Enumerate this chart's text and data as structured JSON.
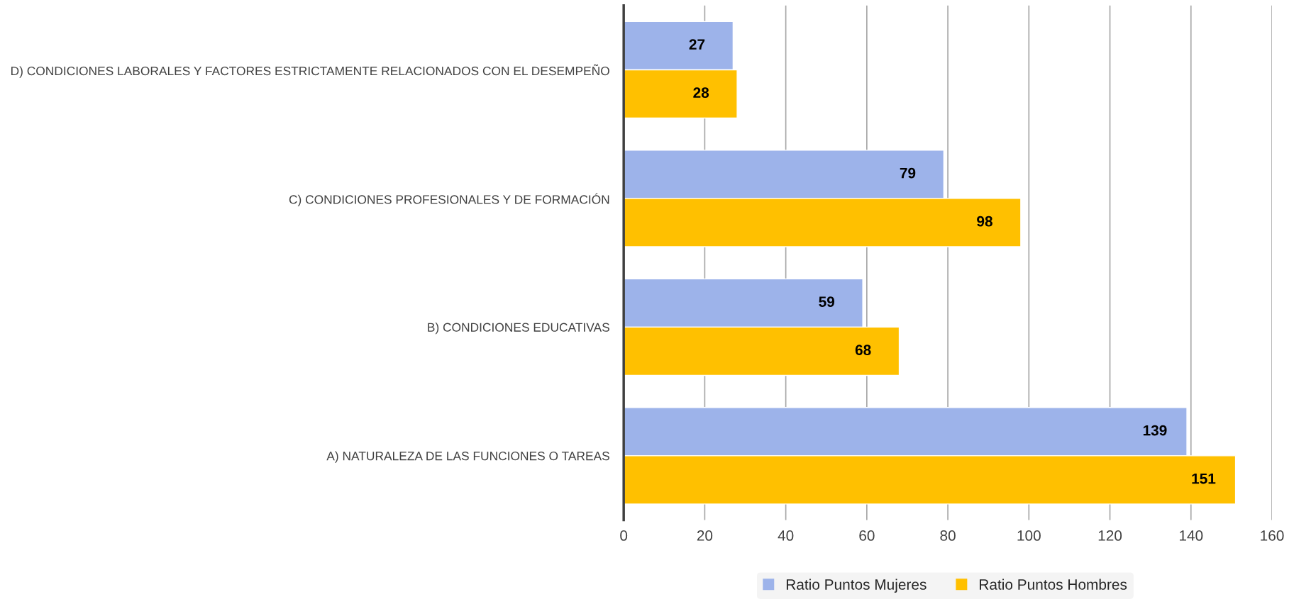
{
  "chart_data": {
    "type": "bar",
    "orientation": "horizontal",
    "categories": [
      "D) CONDICIONES LABORALES Y FACTORES ESTRICTAMENTE RELACIONADOS CON EL DESEMPEÑO",
      "C) CONDICIONES PROFESIONALES Y DE FORMACIÓN",
      "B) CONDICIONES EDUCATIVAS",
      "A) NATURALEZA DE LAS FUNCIONES O TAREAS"
    ],
    "series": [
      {
        "name": "Ratio Puntos Mujeres",
        "color": "#9db3ea",
        "values": [
          27,
          79,
          59,
          139
        ]
      },
      {
        "name": "Ratio Puntos Hombres",
        "color": "#ffc000",
        "values": [
          28,
          98,
          68,
          151
        ]
      }
    ],
    "xlim": [
      0,
      160
    ],
    "xticks": [
      0,
      20,
      40,
      60,
      80,
      100,
      120,
      140,
      160
    ],
    "grid": "x",
    "legend": "bottom",
    "data_labels": true
  }
}
